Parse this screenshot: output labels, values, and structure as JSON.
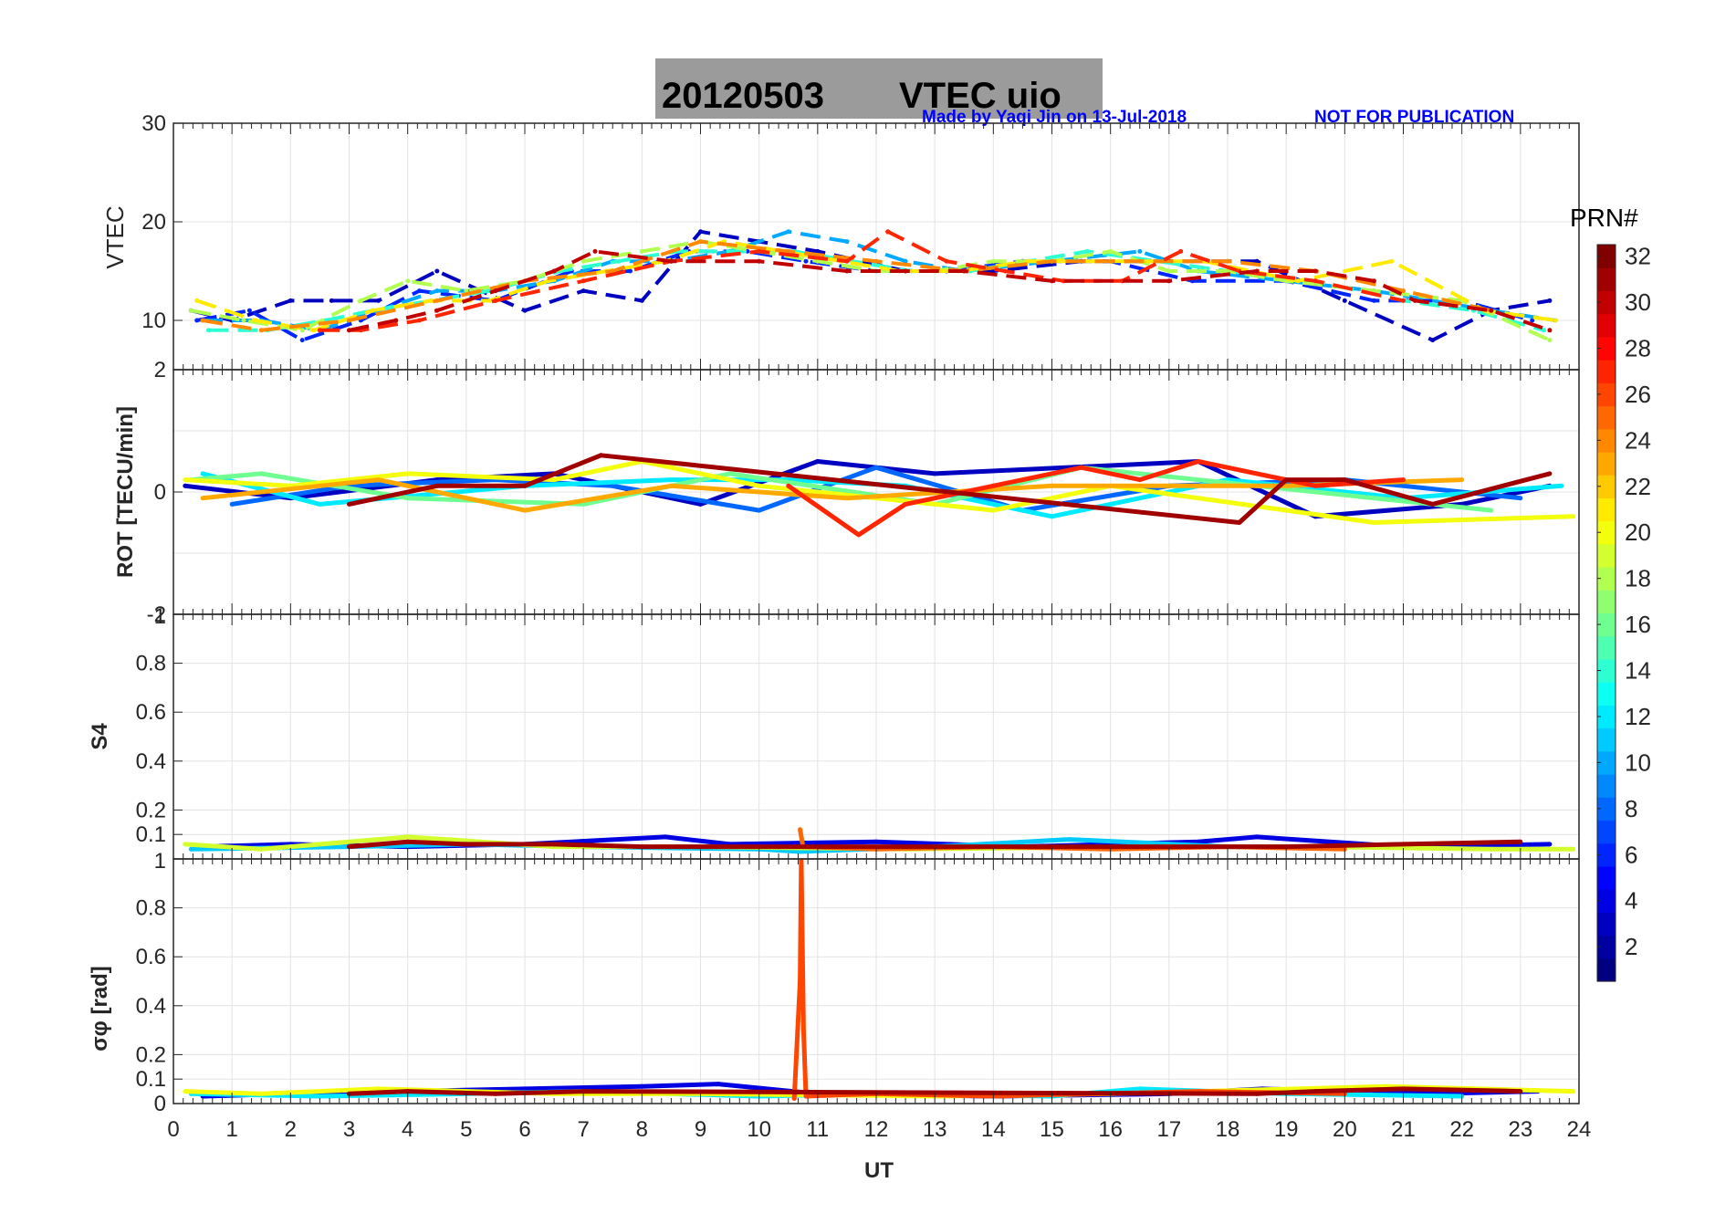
{
  "title": {
    "date": "20120503",
    "label": "VTEC  uio"
  },
  "credit": {
    "author": "Made by Yaqi Jin on 13-Jul-2018",
    "notice": "NOT FOR PUBLICATION",
    "color": "#0000ff"
  },
  "colorbar": {
    "label": "PRN#",
    "min": 1,
    "max": 32,
    "ticks": [
      "2",
      "4",
      "6",
      "8",
      "10",
      "12",
      "14",
      "16",
      "18",
      "20",
      "22",
      "24",
      "26",
      "28",
      "30",
      "32"
    ]
  },
  "chart_data": [
    {
      "type": "scatter",
      "name": "vtec",
      "ylabel": "VTEC",
      "xlim": [
        0,
        24
      ],
      "ylim": [
        5,
        30
      ],
      "yticks": [
        "30",
        "20",
        "10"
      ],
      "grid": true,
      "series": [
        {
          "prn": 3,
          "x": [
            0.3,
            1.0,
            2.0,
            2.7,
            3.5,
            4.5,
            6.0,
            7.0,
            8.0,
            9.0,
            10.0,
            11.0,
            12.5,
            14.0,
            15.5,
            17.0,
            18.5,
            20.0,
            21.5,
            22.5,
            23.5
          ],
          "y": [
            11,
            10,
            12,
            12,
            12,
            15,
            11,
            13,
            12,
            19,
            18,
            17,
            15,
            15,
            16,
            16,
            16,
            12,
            8,
            11,
            12
          ]
        },
        {
          "prn": 6,
          "x": [
            0.4,
            1.3,
            2.2,
            3.2,
            4.2,
            5.5,
            6.8,
            7.8,
            8.8,
            9.8,
            10.8,
            12.0,
            13.2,
            14.5,
            16.0,
            17.4,
            19.0,
            20.5,
            22.0,
            23.2
          ],
          "y": [
            10,
            11,
            8,
            10,
            13,
            12,
            15,
            15,
            17,
            17,
            16,
            15,
            15,
            16,
            16,
            14,
            14,
            12,
            12,
            10
          ]
        },
        {
          "prn": 10,
          "x": [
            0.5,
            1.5,
            2.5,
            3.5,
            4.5,
            5.5,
            6.5,
            7.5,
            8.5,
            9.5,
            10.5,
            11.5,
            12.5,
            13.5,
            15.0,
            16.5,
            17.5,
            19.0,
            20.5,
            22.5,
            23.6
          ],
          "y": [
            10,
            10,
            9,
            11,
            13,
            13,
            14,
            16,
            16,
            17,
            19,
            18,
            16,
            15,
            16,
            17,
            15,
            14,
            13,
            11,
            10
          ]
        },
        {
          "prn": 14,
          "x": [
            0.6,
            1.6,
            2.6,
            3.4,
            4.4,
            5.4,
            6.6,
            7.6,
            8.6,
            9.6,
            10.6,
            11.6,
            12.6,
            13.6,
            14.6,
            15.6,
            16.8,
            18.0,
            19.5,
            21.0,
            22.2,
            23.4
          ],
          "y": [
            9,
            9,
            10,
            11,
            12,
            13,
            15,
            16,
            17,
            17,
            17,
            16,
            15,
            15,
            16,
            17,
            16,
            15,
            14,
            12,
            11,
            9
          ]
        },
        {
          "prn": 18,
          "x": [
            0.3,
            1.2,
            2.2,
            3.2,
            4.0,
            5.0,
            6.0,
            7.0,
            8.0,
            9.0,
            10.0,
            11.0,
            12.0,
            13.0,
            14.0,
            15.0,
            16.0,
            17.0,
            18.0,
            19.0,
            20.5,
            22.0,
            23.5
          ],
          "y": [
            11,
            10,
            9,
            12,
            14,
            13,
            14,
            16,
            17,
            18,
            17,
            16,
            15,
            15,
            16,
            16,
            17,
            15,
            15,
            14,
            13,
            12,
            8
          ]
        },
        {
          "prn": 21,
          "x": [
            0.4,
            1.4,
            2.4,
            3.4,
            4.4,
            5.4,
            6.4,
            7.4,
            8.4,
            9.4,
            10.4,
            11.4,
            12.4,
            13.4,
            14.6,
            16.0,
            17.6,
            19.2,
            20.8,
            22.4,
            23.6
          ],
          "y": [
            12,
            10,
            9,
            11,
            12,
            12,
            14,
            15,
            16,
            18,
            17,
            16,
            15,
            15,
            16,
            16,
            16,
            14,
            16,
            11,
            10
          ]
        },
        {
          "prn": 24,
          "x": [
            0.5,
            1.5,
            3.0,
            4.5,
            6.0,
            7.5,
            9.0,
            10.5,
            12.0,
            13.5,
            15.0,
            16.5,
            18.0,
            19.5,
            21.0,
            22.5
          ],
          "y": [
            10,
            9,
            10,
            12,
            14,
            15,
            18,
            17,
            16,
            15,
            16,
            16,
            16,
            15,
            13,
            11
          ]
        },
        {
          "prn": 27,
          "x": [
            2.5,
            3.2,
            4.2,
            5.5,
            7.0,
            8.5,
            10.0,
            11.5,
            12.2,
            13.2,
            14.2,
            15.2,
            16.2,
            17.2,
            18.2,
            19.5,
            21.0
          ],
          "y": [
            9,
            9,
            10,
            12,
            14,
            16,
            17,
            16,
            19,
            16,
            15,
            14,
            14,
            17,
            15,
            14,
            12
          ]
        },
        {
          "prn": 30,
          "x": [
            3.0,
            3.8,
            4.5,
            5.5,
            6.5,
            7.2,
            8.5,
            10.0,
            11.5,
            12.5,
            13.5,
            15.0,
            17.0,
            18.5,
            19.5,
            20.5,
            21.2,
            22.5,
            23.5
          ],
          "y": [
            9,
            10,
            11,
            13,
            15,
            17,
            16,
            16,
            15,
            15,
            15,
            14,
            14,
            15,
            15,
            14,
            12,
            11,
            9
          ]
        }
      ]
    },
    {
      "type": "scatter",
      "name": "rot",
      "ylabel": "ROT [TECU/min]",
      "xlim": [
        0,
        24
      ],
      "ylim": [
        -2,
        2
      ],
      "yticks": [
        "2",
        "0",
        "-2"
      ],
      "grid": true,
      "series": [
        {
          "prn": 3,
          "x": [
            0.2,
            2.0,
            4.5,
            6.5,
            9.0,
            11.0,
            13.0,
            17.5,
            19.5,
            22.0,
            23.5
          ],
          "y": [
            0.1,
            -0.1,
            0.2,
            0.3,
            -0.2,
            0.5,
            0.3,
            0.5,
            -0.4,
            -0.2,
            0.1
          ]
        },
        {
          "prn": 8,
          "x": [
            1.0,
            3.0,
            5.5,
            7.5,
            10.0,
            12.0,
            14.5,
            17.0,
            20.0,
            23.0
          ],
          "y": [
            -0.2,
            0.1,
            0.2,
            0.1,
            -0.3,
            0.4,
            -0.3,
            0.1,
            0.2,
            -0.1
          ]
        },
        {
          "prn": 12,
          "x": [
            0.5,
            2.5,
            6.0,
            8.5,
            10.5,
            12.5,
            15.0,
            18.0,
            21.0,
            23.7
          ],
          "y": [
            0.3,
            -0.2,
            0.1,
            0.2,
            0.2,
            0.1,
            -0.4,
            0.2,
            -0.1,
            0.1
          ]
        },
        {
          "prn": 16,
          "x": [
            0.3,
            1.5,
            4.0,
            7.0,
            9.5,
            13.0,
            15.5,
            18.5,
            22.5
          ],
          "y": [
            0.2,
            0.3,
            -0.1,
            -0.2,
            0.3,
            -0.2,
            0.4,
            0.1,
            -0.3
          ]
        },
        {
          "prn": 20,
          "x": [
            0.2,
            2.0,
            4.0,
            6.5,
            8.0,
            10.0,
            14.0,
            16.0,
            20.5,
            23.9
          ],
          "y": [
            0.2,
            0.1,
            0.3,
            0.2,
            0.5,
            0.1,
            -0.3,
            0.1,
            -0.5,
            -0.4
          ]
        },
        {
          "prn": 23,
          "x": [
            0.5,
            3.5,
            6.0,
            8.5,
            11.5,
            15.0,
            19.0,
            22.0
          ],
          "y": [
            -0.1,
            0.2,
            -0.3,
            0.1,
            -0.1,
            0.1,
            0.1,
            0.2
          ]
        },
        {
          "prn": 27,
          "x": [
            10.5,
            11.7,
            12.5,
            14.0,
            15.5,
            16.5,
            17.5,
            19.5,
            21.0
          ],
          "y": [
            0.1,
            -0.7,
            -0.2,
            0.1,
            0.4,
            0.2,
            0.5,
            0.1,
            0.2
          ]
        },
        {
          "prn": 31,
          "x": [
            3.0,
            4.5,
            6.0,
            7.3,
            18.2,
            19.0,
            20.0,
            21.5,
            23.5
          ],
          "y": [
            -0.2,
            0.1,
            0.1,
            0.6,
            -0.5,
            0.2,
            0.2,
            -0.2,
            0.3
          ]
        }
      ]
    },
    {
      "type": "scatter",
      "name": "s4",
      "ylabel": "S4",
      "xlim": [
        0,
        24
      ],
      "ylim": [
        0,
        1
      ],
      "yticks": [
        "0.8",
        "0.6",
        "0.4",
        "0.2",
        "0.1"
      ],
      "top_tick": "1",
      "grid": true,
      "series": [
        {
          "prn": 4,
          "x": [
            0.5,
            2.0,
            4.0,
            6.0,
            8.4,
            9.5,
            12.0,
            14.5,
            17.5,
            18.5,
            21.0,
            23.5
          ],
          "y": [
            0.05,
            0.06,
            0.05,
            0.06,
            0.09,
            0.06,
            0.07,
            0.05,
            0.07,
            0.09,
            0.05,
            0.06
          ]
        },
        {
          "prn": 11,
          "x": [
            0.3,
            3.0,
            5.0,
            7.0,
            10.0,
            10.7,
            13.0,
            15.3,
            18.0,
            20.5
          ],
          "y": [
            0.04,
            0.05,
            0.06,
            0.05,
            0.04,
            0.03,
            0.05,
            0.08,
            0.05,
            0.05
          ]
        },
        {
          "prn": 19,
          "x": [
            0.2,
            1.5,
            4.0,
            6.5,
            9.0,
            12.5,
            16.5,
            19.5,
            22.5,
            23.9
          ],
          "y": [
            0.06,
            0.04,
            0.09,
            0.05,
            0.05,
            0.04,
            0.05,
            0.05,
            0.04,
            0.04
          ]
        },
        {
          "prn": 25,
          "x": [
            10.7,
            10.75,
            12.0,
            14.0,
            16.0,
            18.0,
            20.0
          ],
          "y": [
            0.12,
            0.05,
            0.04,
            0.05,
            0.04,
            0.05,
            0.04
          ]
        },
        {
          "prn": 31,
          "x": [
            3.0,
            4.0,
            5.0,
            6.5,
            8.0,
            19.0,
            21.0,
            23.0
          ],
          "y": [
            0.05,
            0.07,
            0.06,
            0.06,
            0.05,
            0.05,
            0.06,
            0.07
          ]
        }
      ]
    },
    {
      "type": "scatter",
      "name": "sigma_phi",
      "ylabel": "σφ [rad]",
      "xlabel": "UT",
      "xlim": [
        0,
        24
      ],
      "xticks": [
        "0",
        "1",
        "2",
        "3",
        "4",
        "5",
        "6",
        "7",
        "8",
        "9",
        "10",
        "11",
        "12",
        "13",
        "14",
        "15",
        "16",
        "17",
        "18",
        "19",
        "20",
        "21",
        "22",
        "23",
        "24"
      ],
      "ylim": [
        0,
        1
      ],
      "yticks": [
        "0.8",
        "0.6",
        "0.4",
        "0.2",
        "0.1",
        "0"
      ],
      "top_tick": "1",
      "grid": true,
      "series": [
        {
          "prn": 4,
          "x": [
            0.5,
            2.0,
            4.0,
            6.0,
            8.0,
            9.3,
            11.0,
            14.0,
            17.0,
            18.6,
            21.5,
            23.3
          ],
          "y": [
            0.03,
            0.04,
            0.05,
            0.06,
            0.07,
            0.08,
            0.04,
            0.03,
            0.04,
            0.06,
            0.04,
            0.05
          ]
        },
        {
          "prn": 12,
          "x": [
            0.3,
            2.5,
            5.0,
            7.0,
            10.0,
            12.0,
            15.0,
            16.5,
            19.0,
            22.0
          ],
          "y": [
            0.04,
            0.03,
            0.04,
            0.05,
            0.03,
            0.04,
            0.03,
            0.06,
            0.04,
            0.03
          ]
        },
        {
          "prn": 20,
          "x": [
            0.2,
            1.5,
            3.5,
            6.5,
            9.0,
            13.0,
            16.0,
            20.7,
            23.9
          ],
          "y": [
            0.05,
            0.04,
            0.06,
            0.04,
            0.04,
            0.03,
            0.04,
            0.07,
            0.05
          ]
        },
        {
          "prn": 26,
          "x": [
            10.6,
            10.7,
            10.72,
            10.76,
            10.8,
            12.0,
            14.0,
            17.5,
            20.0
          ],
          "y": [
            0.02,
            0.5,
            1.0,
            0.3,
            0.03,
            0.04,
            0.03,
            0.05,
            0.04
          ]
        },
        {
          "prn": 31,
          "x": [
            3.0,
            4.0,
            5.5,
            7.0,
            18.5,
            19.5,
            21.0,
            23.0
          ],
          "y": [
            0.04,
            0.05,
            0.04,
            0.05,
            0.04,
            0.05,
            0.06,
            0.05
          ]
        }
      ]
    }
  ]
}
